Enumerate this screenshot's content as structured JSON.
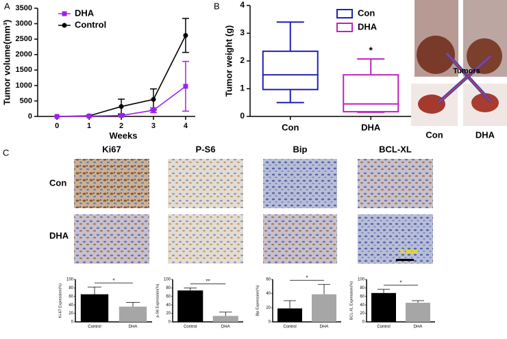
{
  "panel_labels": [
    "A",
    "B",
    "C"
  ],
  "photos": {
    "tumors_label": "Tumors",
    "columns": [
      "Con",
      "DHA"
    ]
  },
  "micrographs": {
    "stains": [
      "Ki67",
      "P-S6",
      "Bip",
      "BCL-XL"
    ],
    "rows": [
      "Con",
      "DHA"
    ],
    "scale_bar": "5 mm"
  },
  "chart_data": [
    {
      "type": "line",
      "xlabel": "Weeks",
      "ylabel": "Tumor volume(mm³)",
      "x": [
        0,
        1,
        2,
        3,
        4
      ],
      "xlim": [
        -0.6,
        4.3
      ],
      "xticks": [
        0,
        1,
        2,
        3,
        4
      ],
      "ylim": [
        0,
        3500
      ],
      "yticks": [
        0,
        500,
        1000,
        1500,
        2000,
        2500,
        3000,
        3500
      ],
      "legend": "upper left",
      "series": [
        {
          "name": "DHA",
          "color": "#a020f0",
          "marker": "square",
          "values": [
            0,
            10,
            30,
            200,
            975
          ],
          "errors": [
            0,
            5,
            20,
            80,
            805
          ]
        },
        {
          "name": "Control",
          "color": "#000000",
          "marker": "circle",
          "values": [
            0,
            20,
            320,
            550,
            2620
          ],
          "errors": [
            0,
            10,
            240,
            340,
            550
          ]
        }
      ]
    },
    {
      "type": "box",
      "ylabel": "Tumor weight (g)",
      "categories": [
        "Con",
        "DHA"
      ],
      "ylim": [
        0,
        4
      ],
      "yticks": [
        0,
        1,
        2,
        3,
        4
      ],
      "legend": "upper right",
      "annotation": "*",
      "series": [
        {
          "name": "Con",
          "color": "#1f1fb4",
          "min": 0.5,
          "q1": 0.97,
          "median": 1.5,
          "q3": 2.35,
          "max": 3.4
        },
        {
          "name": "DHA",
          "color": "#c020c0",
          "min": 0.15,
          "q1": 0.17,
          "median": 0.45,
          "q3": 1.5,
          "max": 2.07
        }
      ]
    },
    {
      "type": "bar",
      "ylabel": "Ki-67 Expression(%)",
      "categories": [
        "Control",
        "DHA"
      ],
      "values": [
        65,
        36
      ],
      "errors": [
        17,
        10
      ],
      "colors": [
        "#000000",
        "#a6a6a6"
      ],
      "ylim": [
        0,
        100
      ],
      "yticks": [
        0,
        20,
        40,
        60,
        80,
        100
      ],
      "annotation": "*"
    },
    {
      "type": "bar",
      "ylabel": "p-S6 Expression(%)",
      "categories": [
        "Control",
        "DHA"
      ],
      "values": [
        74,
        14
      ],
      "errors": [
        6,
        9
      ],
      "colors": [
        "#000000",
        "#a6a6a6"
      ],
      "ylim": [
        0,
        100
      ],
      "yticks": [
        0,
        20,
        40,
        60,
        80,
        100
      ],
      "annotation": "**"
    },
    {
      "type": "bar",
      "ylabel": "Bip Expression(%)",
      "categories": [
        "Control",
        "DHA"
      ],
      "values": [
        19,
        39
      ],
      "errors": [
        11,
        14
      ],
      "colors": [
        "#000000",
        "#a6a6a6"
      ],
      "ylim": [
        0,
        60
      ],
      "yticks": [
        0,
        20,
        40,
        60
      ],
      "annotation": "*"
    },
    {
      "type": "bar",
      "ylabel": "BCL-XL Expression(%)",
      "categories": [
        "Control",
        "DHA"
      ],
      "values": [
        68,
        45
      ],
      "errors": [
        9,
        5
      ],
      "colors": [
        "#000000",
        "#a6a6a6"
      ],
      "ylim": [
        0,
        100
      ],
      "yticks": [
        0,
        20,
        40,
        60,
        80,
        100
      ],
      "annotation": "*"
    }
  ]
}
